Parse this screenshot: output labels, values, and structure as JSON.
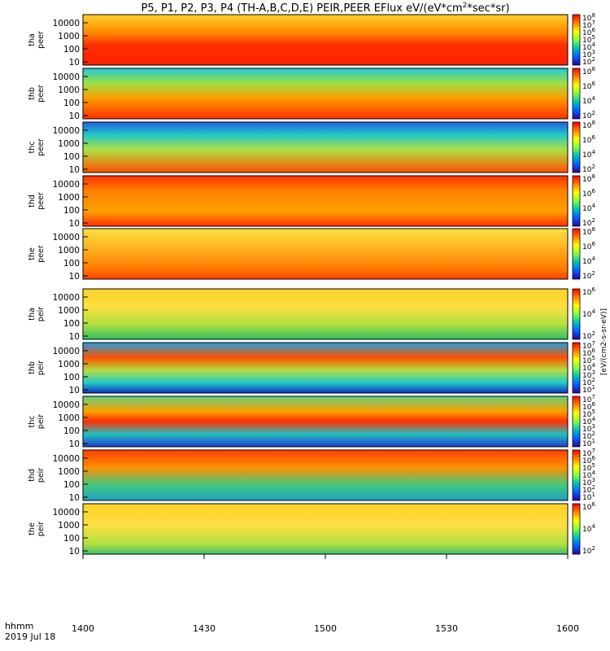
{
  "chart_data": {
    "type": "heatmap",
    "title": "P5, P1, P2, P3, P4 (TH-A,B,C,D,E) PEIR,PEER EFlux eV/(eV*cm2*sec*sr)",
    "title_parts": {
      "prefix": "P5, P1, P2, P3, P4 (TH-A,B,C,D,E) PEIR,PEER EFlux eV/(eV*cm",
      "sup": "2",
      "suffix": "*sec*sr)"
    },
    "x_axis": {
      "ticks": [
        "1400",
        "1430",
        "1500",
        "1530",
        "1600"
      ],
      "corner_label_1": "hhmm",
      "corner_label_2": "2019 Jul 18"
    },
    "y_ticks": [
      "10000",
      "1000",
      "100",
      "10"
    ],
    "colorbar_title": "[eV/(cm2-s-sr-eV)]",
    "panels": [
      {
        "probe": "tha",
        "species": "peer",
        "cbar_exponents": [
          "8",
          "7",
          "6",
          "5",
          "4",
          "3",
          "2"
        ],
        "fill": [
          {
            "t": 0,
            "c": "#ffd028"
          },
          {
            "t": 0.35,
            "c": "#ff8a00"
          },
          {
            "t": 0.6,
            "c": "#ff3000"
          },
          {
            "t": 1,
            "c": "#ff2000"
          }
        ]
      },
      {
        "probe": "thb",
        "species": "peer",
        "cbar_exponents": [
          "8",
          "6",
          "4",
          "2"
        ],
        "fill": [
          {
            "t": 0,
            "c": "#20c8d8"
          },
          {
            "t": 0.3,
            "c": "#a0e040"
          },
          {
            "t": 0.6,
            "c": "#ff9a00"
          },
          {
            "t": 1,
            "c": "#ff3000"
          }
        ]
      },
      {
        "probe": "thc",
        "species": "peer",
        "cbar_exponents": [
          "8",
          "6",
          "4",
          "2"
        ],
        "fill": [
          {
            "t": 0,
            "c": "#2060e0"
          },
          {
            "t": 0.25,
            "c": "#20c8c8"
          },
          {
            "t": 0.55,
            "c": "#b0e040"
          },
          {
            "t": 1,
            "c": "#ff5000"
          }
        ]
      },
      {
        "probe": "thd",
        "species": "peer",
        "cbar_exponents": [
          "8",
          "6",
          "4",
          "2"
        ],
        "fill": [
          {
            "t": 0,
            "c": "#ff3000"
          },
          {
            "t": 0.3,
            "c": "#ff8000"
          },
          {
            "t": 0.7,
            "c": "#ffa000"
          },
          {
            "t": 1,
            "c": "#ff3000"
          }
        ]
      },
      {
        "probe": "the",
        "species": "peer",
        "cbar_exponents": [
          "8",
          "6",
          "4",
          "2"
        ],
        "fill": [
          {
            "t": 0,
            "c": "#ffe040"
          },
          {
            "t": 0.4,
            "c": "#ffb020"
          },
          {
            "t": 0.8,
            "c": "#ff7a00"
          },
          {
            "t": 1,
            "c": "#ff4000"
          }
        ]
      },
      {
        "probe": "tha",
        "species": "peir",
        "cbar_exponents": [
          "6",
          "4",
          "2"
        ],
        "fill": [
          {
            "t": 0,
            "c": "#ffd028"
          },
          {
            "t": 0.35,
            "c": "#ffe040"
          },
          {
            "t": 0.7,
            "c": "#b0e040"
          },
          {
            "t": 1,
            "c": "#30c060"
          }
        ]
      },
      {
        "probe": "thb",
        "species": "peir",
        "cbar_exponents": [
          "7",
          "6",
          "5",
          "4",
          "3",
          "2",
          "1"
        ],
        "fill": [
          {
            "t": 0,
            "c": "#20a0e0"
          },
          {
            "t": 0.3,
            "c": "#ff5000"
          },
          {
            "t": 0.55,
            "c": "#b0e040"
          },
          {
            "t": 0.8,
            "c": "#20c8c8"
          },
          {
            "t": 1,
            "c": "#1030c0"
          }
        ]
      },
      {
        "probe": "thc",
        "species": "peir",
        "cbar_exponents": [
          "7",
          "6",
          "5",
          "4",
          "3",
          "2",
          "1"
        ],
        "fill": [
          {
            "t": 0,
            "c": "#60d080"
          },
          {
            "t": 0.3,
            "c": "#ffa000"
          },
          {
            "t": 0.5,
            "c": "#ff3000"
          },
          {
            "t": 0.75,
            "c": "#20c0c0"
          },
          {
            "t": 1,
            "c": "#2040d0"
          }
        ]
      },
      {
        "probe": "thd",
        "species": "peir",
        "cbar_exponents": [
          "7",
          "6",
          "5",
          "4",
          "3",
          "2",
          "1"
        ],
        "fill": [
          {
            "t": 0,
            "c": "#ff4000"
          },
          {
            "t": 0.35,
            "c": "#ff9000"
          },
          {
            "t": 0.7,
            "c": "#40c880"
          },
          {
            "t": 1,
            "c": "#20a0c0"
          }
        ]
      },
      {
        "probe": "the",
        "species": "peir",
        "cbar_exponents": [
          "6",
          "4",
          "2"
        ],
        "fill": [
          {
            "t": 0,
            "c": "#ffd028"
          },
          {
            "t": 0.4,
            "c": "#ffe040"
          },
          {
            "t": 0.8,
            "c": "#b0e040"
          },
          {
            "t": 1,
            "c": "#40c070"
          }
        ]
      }
    ],
    "colorbar_gradient": [
      "#ff0000",
      "#ff8000",
      "#ffff00",
      "#80ff40",
      "#00c0c0",
      "#0060ff",
      "#3000a0"
    ]
  }
}
